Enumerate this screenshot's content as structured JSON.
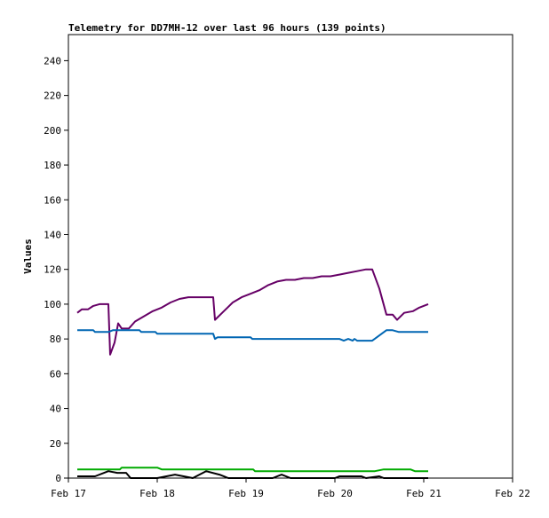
{
  "chart_data": {
    "type": "line",
    "title": "Telemetry for DD7MH-12 over last 96 hours (139 points)",
    "ylabel": "Values",
    "xlabel": "",
    "xlim": [
      0,
      5
    ],
    "ylim": [
      0,
      255
    ],
    "grid": false,
    "legend": "none",
    "yticks": [
      0,
      20,
      40,
      60,
      80,
      100,
      120,
      140,
      160,
      180,
      200,
      220,
      240
    ],
    "xticks": [
      {
        "x": 0,
        "label": "Feb 17"
      },
      {
        "x": 1,
        "label": "Feb 18"
      },
      {
        "x": 2,
        "label": "Feb 19"
      },
      {
        "x": 3,
        "label": "Feb 20"
      },
      {
        "x": 4,
        "label": "Feb 21"
      },
      {
        "x": 5,
        "label": "Feb 22"
      }
    ],
    "series": [
      {
        "color": "#660066",
        "points": [
          [
            0.1,
            95
          ],
          [
            0.15,
            97
          ],
          [
            0.22,
            97
          ],
          [
            0.28,
            99
          ],
          [
            0.35,
            100
          ],
          [
            0.45,
            100
          ],
          [
            0.47,
            71
          ],
          [
            0.52,
            78
          ],
          [
            0.56,
            89
          ],
          [
            0.6,
            86
          ],
          [
            0.68,
            86
          ],
          [
            0.75,
            90
          ],
          [
            0.85,
            93
          ],
          [
            0.95,
            96
          ],
          [
            1.05,
            98
          ],
          [
            1.15,
            101
          ],
          [
            1.25,
            103
          ],
          [
            1.35,
            104
          ],
          [
            1.45,
            104
          ],
          [
            1.63,
            104
          ],
          [
            1.65,
            91
          ],
          [
            1.75,
            96
          ],
          [
            1.85,
            101
          ],
          [
            1.95,
            104
          ],
          [
            2.05,
            106
          ],
          [
            2.15,
            108
          ],
          [
            2.25,
            111
          ],
          [
            2.35,
            113
          ],
          [
            2.45,
            114
          ],
          [
            2.55,
            114
          ],
          [
            2.65,
            115
          ],
          [
            2.75,
            115
          ],
          [
            2.85,
            116
          ],
          [
            2.95,
            116
          ],
          [
            3.05,
            117
          ],
          [
            3.15,
            118
          ],
          [
            3.25,
            119
          ],
          [
            3.35,
            120
          ],
          [
            3.42,
            120
          ],
          [
            3.5,
            109
          ],
          [
            3.58,
            94
          ],
          [
            3.65,
            94
          ],
          [
            3.7,
            91
          ],
          [
            3.78,
            95
          ],
          [
            3.88,
            96
          ],
          [
            3.95,
            98
          ],
          [
            4.05,
            100
          ]
        ]
      },
      {
        "color": "#0066b3",
        "points": [
          [
            0.1,
            85
          ],
          [
            0.28,
            85
          ],
          [
            0.3,
            84
          ],
          [
            0.45,
            84
          ],
          [
            0.5,
            85
          ],
          [
            0.8,
            85
          ],
          [
            0.82,
            84
          ],
          [
            0.98,
            84
          ],
          [
            1.0,
            83
          ],
          [
            1.63,
            83
          ],
          [
            1.65,
            80
          ],
          [
            1.68,
            81
          ],
          [
            2.05,
            81
          ],
          [
            2.07,
            80
          ],
          [
            3.05,
            80
          ],
          [
            3.1,
            79
          ],
          [
            3.15,
            80
          ],
          [
            3.2,
            79
          ],
          [
            3.22,
            80
          ],
          [
            3.25,
            79
          ],
          [
            3.42,
            79
          ],
          [
            3.5,
            82
          ],
          [
            3.58,
            85
          ],
          [
            3.65,
            85
          ],
          [
            3.72,
            84
          ],
          [
            4.05,
            84
          ]
        ]
      },
      {
        "color": "#00aa00",
        "points": [
          [
            0.1,
            5
          ],
          [
            0.58,
            5
          ],
          [
            0.6,
            6
          ],
          [
            1.0,
            6
          ],
          [
            1.05,
            5
          ],
          [
            1.65,
            5
          ],
          [
            1.7,
            5
          ],
          [
            2.08,
            5
          ],
          [
            2.1,
            4
          ],
          [
            3.45,
            4
          ],
          [
            3.55,
            5
          ],
          [
            3.85,
            5
          ],
          [
            3.9,
            4
          ],
          [
            4.05,
            4
          ]
        ]
      },
      {
        "color": "#000000",
        "points": [
          [
            0.1,
            1
          ],
          [
            0.3,
            1
          ],
          [
            0.45,
            4
          ],
          [
            0.55,
            3
          ],
          [
            0.65,
            3
          ],
          [
            0.7,
            0
          ],
          [
            1.0,
            0
          ],
          [
            1.2,
            2
          ],
          [
            1.4,
            0
          ],
          [
            1.55,
            4
          ],
          [
            1.7,
            2
          ],
          [
            1.8,
            0
          ],
          [
            2.3,
            0
          ],
          [
            2.4,
            2
          ],
          [
            2.5,
            0
          ],
          [
            3.0,
            0
          ],
          [
            3.05,
            1
          ],
          [
            3.3,
            1
          ],
          [
            3.35,
            0
          ],
          [
            3.5,
            1
          ],
          [
            3.55,
            0
          ],
          [
            4.05,
            0
          ]
        ]
      }
    ]
  }
}
